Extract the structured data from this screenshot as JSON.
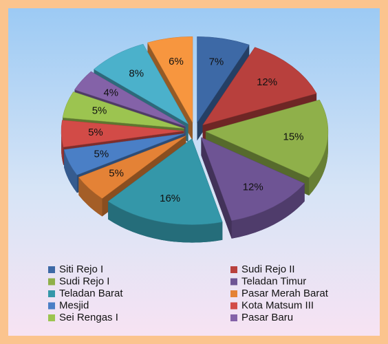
{
  "chart_data": {
    "type": "pie",
    "categories": [
      "Siti Rejo I",
      "Sudi Rejo II",
      "Sudi Rejo I",
      "Teladan Timur",
      "Teladan Barat",
      "Pasar Merah Barat",
      "Mesjid",
      "Kota Matsum III",
      "Sei Rengas I",
      "Pasar Baru",
      null,
      null
    ],
    "values": [
      7,
      12,
      15,
      12,
      16,
      5,
      5,
      5,
      5,
      4,
      8,
      6
    ],
    "value_labels": [
      "7%",
      "12%",
      "15%",
      "12%",
      "16%",
      "5%",
      "5%",
      "5%",
      "5%",
      "4%",
      "8%",
      "6%"
    ],
    "colors": [
      "#3d69a6",
      "#b8403d",
      "#8fb04a",
      "#6e5494",
      "#3497a9",
      "#e48236",
      "#4a7fc6",
      "#d24b47",
      "#9cc450",
      "#8462a8",
      "#4bb1cb",
      "#f7963f"
    ],
    "legend": "bottom"
  }
}
